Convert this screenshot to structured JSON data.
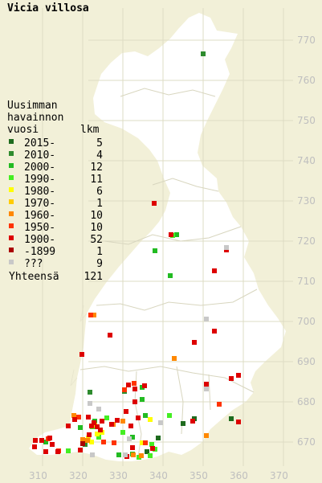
{
  "title": "Vicia villosa",
  "legend": {
    "heading_lines": [
      "Uusimman",
      "havainnon",
      "vuosi"
    ],
    "count_header": "lkm",
    "rows": [
      {
        "label": "2015-",
        "count": "5",
        "color": "#1e6b1e"
      },
      {
        "label": "2010-",
        "count": "4",
        "color": "#2e8b2e"
      },
      {
        "label": "2000-",
        "count": "12",
        "color": "#22bb22"
      },
      {
        "label": "1990-",
        "count": "11",
        "color": "#44ee22"
      },
      {
        "label": "1980-",
        "count": "6",
        "color": "#ffff00"
      },
      {
        "label": "1970-",
        "count": "1",
        "color": "#ffcc00"
      },
      {
        "label": "1960-",
        "count": "10",
        "color": "#ff8800"
      },
      {
        "label": "1950-",
        "count": "10",
        "color": "#ff3300"
      },
      {
        "label": "1900-",
        "count": "52",
        "color": "#dd0000"
      },
      {
        "label": "-1899",
        "count": "1",
        "color": "#aa0000"
      },
      {
        "label": "???",
        "count": "9",
        "color": "#c8c8c8"
      }
    ],
    "total_label": "Yhteensä",
    "total_count": "121"
  },
  "axes": {
    "northing_ticks": [
      "770",
      "760",
      "750",
      "740",
      "730",
      "720",
      "710",
      "700",
      "690",
      "680",
      "670"
    ],
    "easting_ticks": [
      "310",
      "320",
      "330",
      "340",
      "350",
      "360",
      "370"
    ]
  },
  "colors": {
    "background": "#f2f0d8",
    "land": "#ffffff",
    "grid": "#dedcc4",
    "axis_label": "#bfbfbf"
  }
}
